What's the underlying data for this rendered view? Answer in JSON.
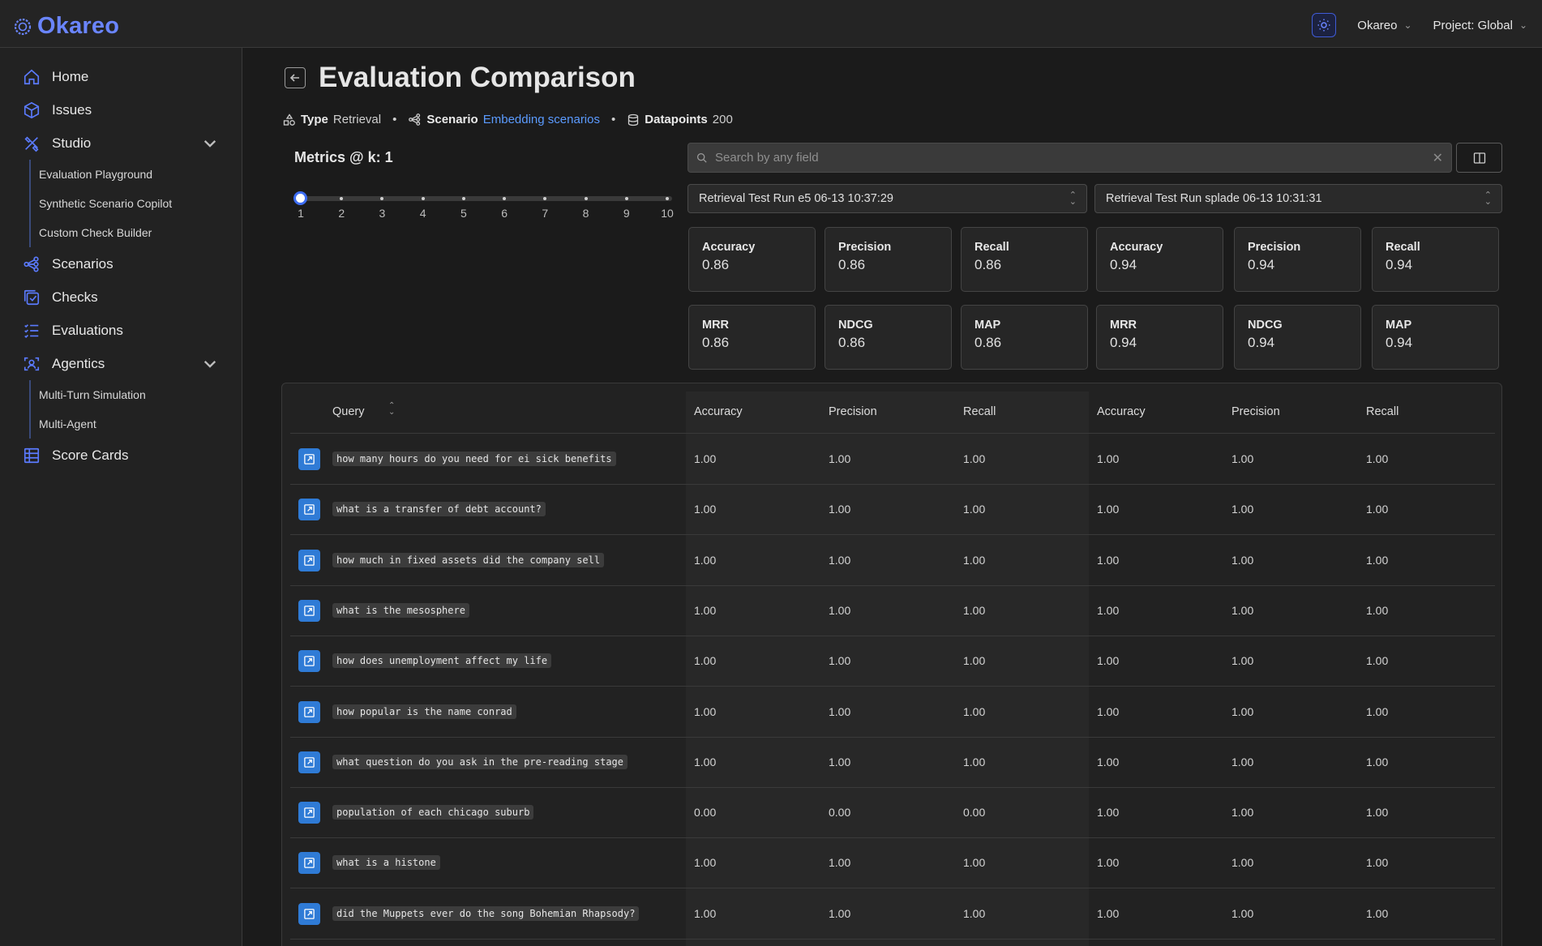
{
  "app": {
    "logo_text": "Okareo",
    "org_label": "Okareo",
    "project_label": "Project: Global"
  },
  "sidebar": {
    "items": [
      {
        "label": "Home",
        "icon": "home-icon"
      },
      {
        "label": "Issues",
        "icon": "cube-icon"
      },
      {
        "label": "Studio",
        "icon": "studio-icon",
        "expanded": true
      },
      {
        "label": "Scenarios",
        "icon": "scenarios-icon"
      },
      {
        "label": "Checks",
        "icon": "checks-icon"
      },
      {
        "label": "Evaluations",
        "icon": "evaluations-icon"
      },
      {
        "label": "Agentics",
        "icon": "agentics-icon",
        "expanded": true
      },
      {
        "label": "Score Cards",
        "icon": "scorecards-icon"
      }
    ],
    "studio_sub": [
      "Evaluation Playground",
      "Synthetic Scenario Copilot",
      "Custom Check Builder"
    ],
    "agentics_sub": [
      "Multi-Turn Simulation",
      "Multi-Agent"
    ]
  },
  "page": {
    "title": "Evaluation Comparison",
    "type_label": "Type",
    "type_value": "Retrieval",
    "scenario_label": "Scenario",
    "scenario_value": "Embedding scenarios",
    "datapoints_label": "Datapoints",
    "datapoints_value": "200"
  },
  "metrics_k": {
    "title": "Metrics @ k: 1",
    "selected": 1,
    "ticks": [
      "1",
      "2",
      "3",
      "4",
      "5",
      "6",
      "7",
      "8",
      "9",
      "10"
    ]
  },
  "search": {
    "placeholder": "Search by any field"
  },
  "runs": [
    {
      "name": "Retrieval Test Run e5 06-13 10:37:29",
      "metrics": [
        {
          "name": "Accuracy",
          "value": "0.86"
        },
        {
          "name": "Precision",
          "value": "0.86"
        },
        {
          "name": "Recall",
          "value": "0.86"
        },
        {
          "name": "MRR",
          "value": "0.86"
        },
        {
          "name": "NDCG",
          "value": "0.86"
        },
        {
          "name": "MAP",
          "value": "0.86"
        }
      ]
    },
    {
      "name": "Retrieval Test Run splade 06-13 10:31:31",
      "metrics": [
        {
          "name": "Accuracy",
          "value": "0.94"
        },
        {
          "name": "Precision",
          "value": "0.94"
        },
        {
          "name": "Recall",
          "value": "0.94"
        },
        {
          "name": "MRR",
          "value": "0.94"
        },
        {
          "name": "NDCG",
          "value": "0.94"
        },
        {
          "name": "MAP",
          "value": "0.94"
        }
      ]
    }
  ],
  "table": {
    "headers": [
      "Query",
      "Accuracy",
      "Precision",
      "Recall",
      "Accuracy",
      "Precision",
      "Recall"
    ],
    "rows": [
      {
        "query": "how many hours do you need for ei sick benefits",
        "values": [
          "1.00",
          "1.00",
          "1.00",
          "1.00",
          "1.00",
          "1.00"
        ]
      },
      {
        "query": "what is a transfer of debt account?",
        "values": [
          "1.00",
          "1.00",
          "1.00",
          "1.00",
          "1.00",
          "1.00"
        ]
      },
      {
        "query": "how much in fixed assets did the company sell",
        "values": [
          "1.00",
          "1.00",
          "1.00",
          "1.00",
          "1.00",
          "1.00"
        ]
      },
      {
        "query": "what is the mesosphere",
        "values": [
          "1.00",
          "1.00",
          "1.00",
          "1.00",
          "1.00",
          "1.00"
        ]
      },
      {
        "query": "how does unemployment affect my life",
        "values": [
          "1.00",
          "1.00",
          "1.00",
          "1.00",
          "1.00",
          "1.00"
        ]
      },
      {
        "query": "how popular is the name conrad",
        "values": [
          "1.00",
          "1.00",
          "1.00",
          "1.00",
          "1.00",
          "1.00"
        ]
      },
      {
        "query": "what question do you ask in the pre-reading stage",
        "values": [
          "1.00",
          "1.00",
          "1.00",
          "1.00",
          "1.00",
          "1.00"
        ]
      },
      {
        "query": "population of each chicago suburb",
        "values": [
          "0.00",
          "0.00",
          "0.00",
          "1.00",
          "1.00",
          "1.00"
        ]
      },
      {
        "query": "what is a histone",
        "values": [
          "1.00",
          "1.00",
          "1.00",
          "1.00",
          "1.00",
          "1.00"
        ]
      },
      {
        "query": "did the Muppets ever do the song Bohemian Rhapsody?",
        "values": [
          "1.00",
          "1.00",
          "1.00",
          "1.00",
          "1.00",
          "1.00"
        ]
      }
    ]
  },
  "colors": {
    "accent": "#3d6df2",
    "logo": "#6a85ff",
    "link": "#5b9bff",
    "row_button": "#2f7bd6"
  }
}
